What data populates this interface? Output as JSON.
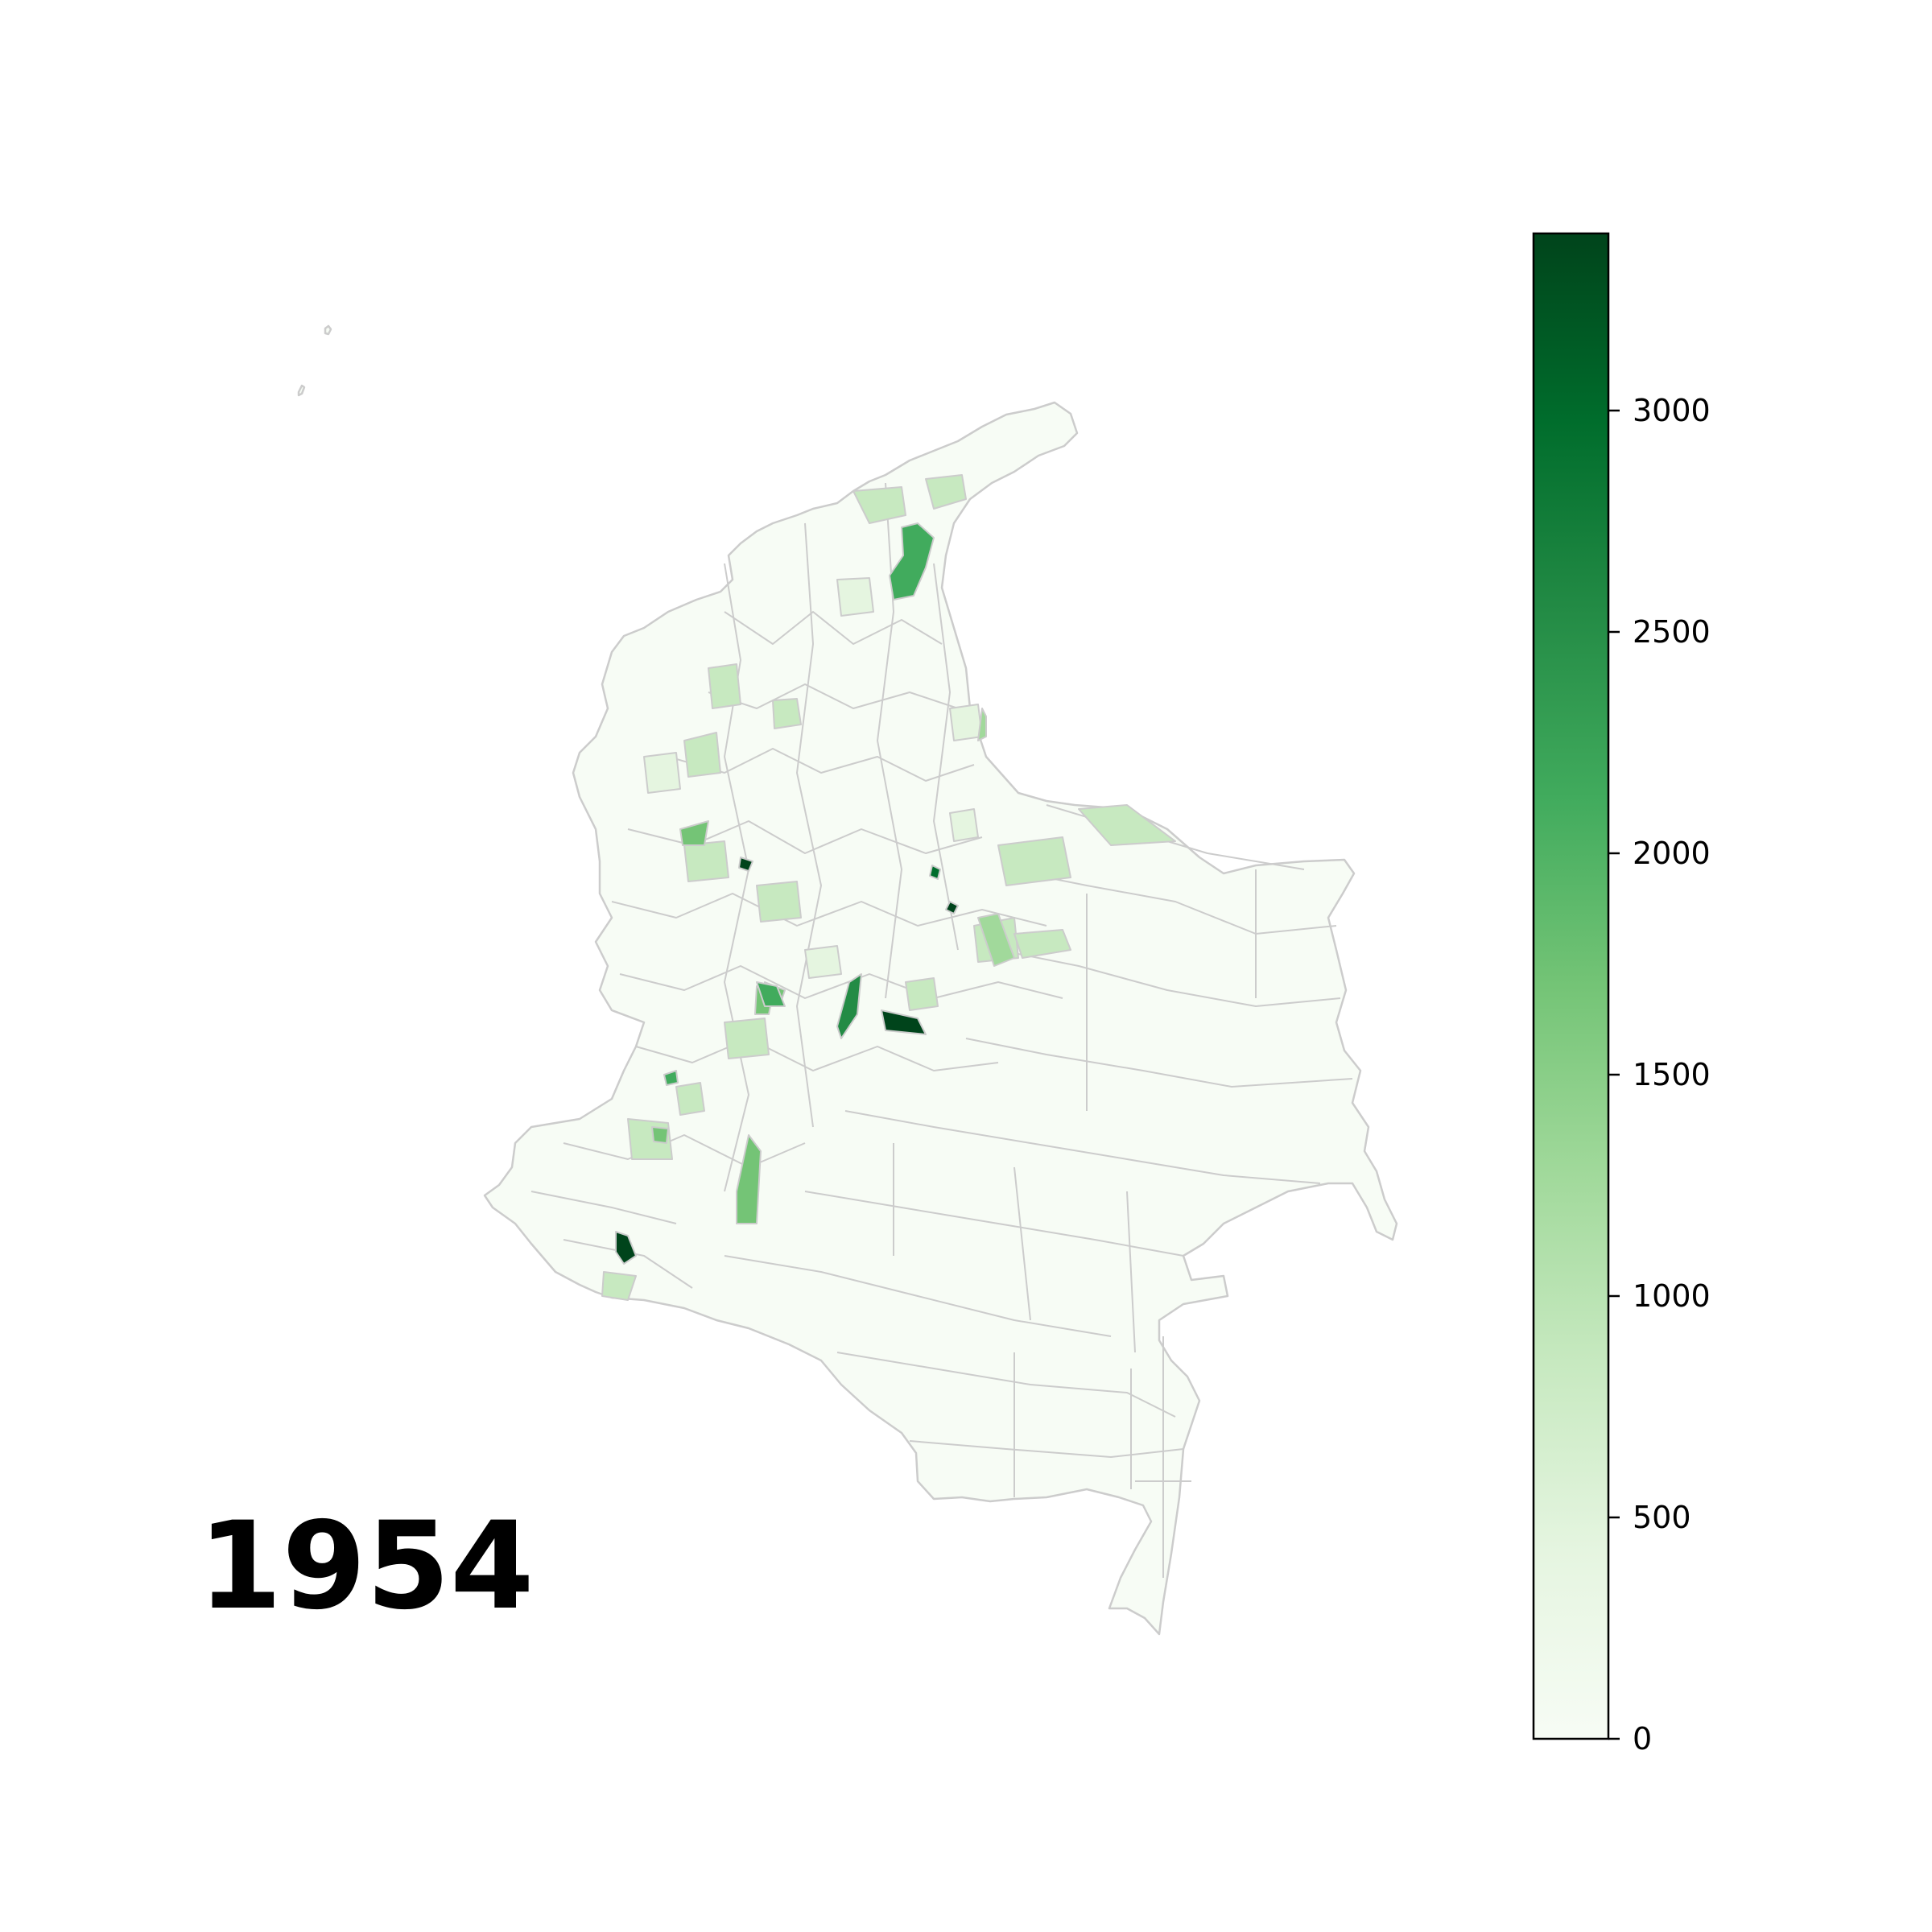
{
  "map": {
    "year_label": "1954",
    "region": "Colombia municipalities choropleth",
    "border_color": "#cccccc",
    "base_fill": "#f7fcf5"
  },
  "colorbar": {
    "colormap": "Greens",
    "min": 0,
    "max": 3400,
    "color_stops": [
      "#f7fcf5",
      "#e5f5e0",
      "#c7e9c0",
      "#a1d99b",
      "#74c476",
      "#41ab5d",
      "#238b45",
      "#006d2c",
      "#00441b"
    ],
    "ticks": [
      {
        "value": 0,
        "label": "0"
      },
      {
        "value": 500,
        "label": "500"
      },
      {
        "value": 1000,
        "label": "1000"
      },
      {
        "value": 1500,
        "label": "1500"
      },
      {
        "value": 2000,
        "label": "2000"
      },
      {
        "value": 2500,
        "label": "2500"
      },
      {
        "value": 3000,
        "label": "3000"
      }
    ]
  },
  "highlights": [
    {
      "name": "north-coast-region",
      "value": 2100
    },
    {
      "name": "south-west-region",
      "value": 3300
    },
    {
      "name": "central-east-region",
      "value": 3400
    },
    {
      "name": "central-strip-region",
      "value": 2800
    },
    {
      "name": "south-central-region",
      "value": 1900
    },
    {
      "name": "north-east-region",
      "value": 1100
    }
  ]
}
